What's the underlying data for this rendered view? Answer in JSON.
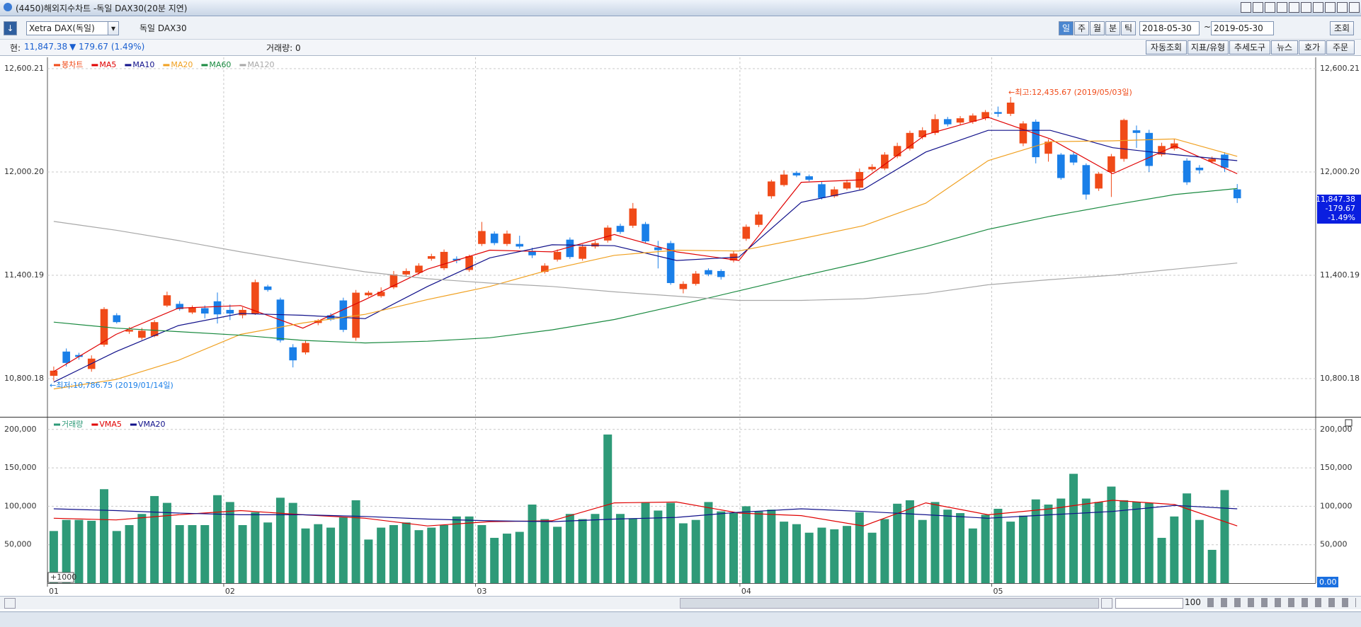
{
  "window": {
    "title": "(4450)해외지수차트 -독일 DAX30(20분 지연)"
  },
  "toolbar": {
    "symbol": "Xetra DAX(독일)",
    "name": "독일 DAX30",
    "periods": [
      "일",
      "주",
      "월",
      "분",
      "틱"
    ],
    "start": "2018-05-30",
    "sep": "~",
    "end": "2019-05-30",
    "query": "조회"
  },
  "info": {
    "price_label": "현:",
    "price": "11,847.38",
    "change": "▼ 179.67 (1.49%)",
    "volume": "거래량: 0",
    "buttons": [
      "자동조회",
      "지표/유형",
      "추세도구",
      "뉴스",
      "호가",
      "주문"
    ]
  },
  "footer": {
    "zoom": "100"
  },
  "chart_data": [
    {
      "type": "candlestick",
      "grid": true,
      "ylim": [
        10578,
        12666
      ],
      "yticks": [
        {
          "value": 12600.21,
          "label": "12,600.21"
        },
        {
          "value": 12000.2,
          "label": "12,000.20"
        },
        {
          "value": 11400.19,
          "label": "11,400.19"
        },
        {
          "value": 10800.18,
          "label": "10,800.18"
        }
      ],
      "series": [
        {
          "name": "봉차트",
          "up_color": "#f04a18",
          "down_color": "#1a7fe8",
          "open": [
            10816,
            10957,
            10937,
            10856,
            10997,
            11168,
            11073,
            11037,
            11047,
            11224,
            11234,
            11184,
            11209,
            11249,
            11199,
            11168,
            11178,
            11335,
            11259,
            10982,
            10952,
            11123,
            11168,
            11254,
            11037,
            11284,
            11279,
            11330,
            11405,
            11415,
            11496,
            11441,
            11496,
            11431,
            11582,
            11642,
            11582,
            11582,
            11541,
            11420,
            11491,
            11607,
            11496,
            11567,
            11602,
            11687,
            11688,
            11698,
            11562,
            11587,
            11320,
            11350,
            11430,
            11425,
            11486,
            11612,
            11693,
            11859,
            11924,
            11995,
            11975,
            11929,
            11859,
            11904,
            11909,
            12015,
            12020,
            12091,
            12136,
            12202,
            12227,
            12307,
            12287,
            12292,
            12312,
            12348,
            12338,
            12166,
            12292,
            12106,
            12101,
            12101,
            12040,
            11904,
            12000,
            12076,
            12242,
            12227,
            12101,
            12136,
            12066,
            12025,
            12060,
            12101,
            11899
          ],
          "high": [
            10870,
            10975,
            10950,
            10935,
            11215,
            11180,
            11100,
            11095,
            11140,
            11305,
            11250,
            11225,
            11225,
            11300,
            11230,
            11215,
            11375,
            11345,
            11270,
            11000,
            11020,
            11145,
            11180,
            11270,
            11315,
            11310,
            11330,
            11425,
            11440,
            11470,
            11525,
            11550,
            11510,
            11520,
            11710,
            11655,
            11660,
            11630,
            11560,
            11470,
            11550,
            11620,
            11580,
            11600,
            11690,
            11700,
            11820,
            11710,
            11600,
            11600,
            11365,
            11425,
            11440,
            11435,
            11540,
            11695,
            11770,
            11955,
            12010,
            12005,
            11985,
            11945,
            11915,
            11955,
            12020,
            12045,
            12115,
            12170,
            12240,
            12260,
            12335,
            12320,
            12325,
            12340,
            12360,
            12380,
            12435.67,
            12295,
            12305,
            12190,
            12110,
            12115,
            12050,
            12000,
            12105,
            12310,
            12270,
            12245,
            12170,
            12190,
            12080,
            12040,
            12090,
            12115,
            11930
          ],
          "low": [
            10786.75,
            10870,
            10910,
            10840,
            10985,
            11120,
            11060,
            11025,
            11040,
            11215,
            11195,
            11175,
            11150,
            11120,
            11140,
            11150,
            11170,
            11305,
            11010,
            10865,
            10940,
            11110,
            11135,
            11070,
            11020,
            11275,
            11270,
            11320,
            11395,
            11405,
            11485,
            11430,
            11470,
            11420,
            11570,
            11575,
            11570,
            11555,
            11500,
            11410,
            11480,
            11495,
            11485,
            11555,
            11590,
            11640,
            11675,
            11585,
            11440,
            11345,
            11295,
            11340,
            11395,
            11375,
            11475,
            11600,
            11680,
            11845,
            11915,
            11970,
            11945,
            11840,
            11850,
            11895,
            11895,
            12005,
            12010,
            12080,
            12125,
            12190,
            12215,
            12265,
            12275,
            12280,
            12300,
            12320,
            12325,
            12150,
            12050,
            12060,
            11955,
            12040,
            11840,
            11890,
            11855,
            12060,
            12140,
            12000,
            12090,
            12125,
            11925,
            11990,
            12050,
            12000,
            11820
          ],
          "close": [
            10846,
            10891,
            10926,
            10916,
            11204,
            11128,
            11083,
            11078,
            11128,
            11284,
            11204,
            11214,
            11178,
            11173,
            11178,
            11199,
            11360,
            11315,
            11022,
            10906,
            11007,
            11138,
            11143,
            11083,
            11299,
            11299,
            11304,
            11405,
            11425,
            11456,
            11511,
            11536,
            11486,
            11511,
            11657,
            11587,
            11642,
            11567,
            11516,
            11456,
            11536,
            11506,
            11567,
            11587,
            11677,
            11652,
            11788,
            11597,
            11546,
            11355,
            11350,
            11410,
            11405,
            11390,
            11526,
            11682,
            11753,
            11945,
            11985,
            11980,
            11955,
            11849,
            11899,
            11940,
            12000,
            12030,
            12101,
            12151,
            12227,
            12242,
            12307,
            12277,
            12312,
            12328,
            12348,
            12338,
            12403,
            12282,
            12086,
            12176,
            11965,
            12055,
            11869,
            11990,
            12091,
            12302,
            12227,
            12035,
            12151,
            12166,
            11940,
            12010,
            12076,
            12025,
            11847.38
          ]
        },
        {
          "name": "MA5",
          "type": "line",
          "color": "#e00000",
          "values": [
            10841,
            11057,
            11209,
            11224,
            11093,
            11259,
            11436,
            11546,
            11536,
            11637,
            11536,
            11486,
            11940,
            11955,
            12217,
            12318,
            12192,
            11990,
            12151,
            11990
          ]
        },
        {
          "name": "MA10",
          "type": "line",
          "color": "#10108a",
          "values": [
            10780,
            10957,
            11108,
            11178,
            11168,
            11148,
            11335,
            11501,
            11577,
            11572,
            11486,
            11506,
            11824,
            11899,
            12116,
            12242,
            12242,
            12141,
            12101,
            12066
          ]
        },
        {
          "name": "MA20",
          "type": "line",
          "color": "#f0a020",
          "values": [
            10740,
            10795,
            10906,
            11057,
            11123,
            11173,
            11259,
            11335,
            11436,
            11516,
            11546,
            11541,
            11612,
            11688,
            11819,
            12066,
            12176,
            12181,
            12192,
            12091
          ]
        },
        {
          "name": "MA60",
          "type": "line",
          "color": "#1a8a40",
          "values": [
            11128,
            11093,
            11073,
            11052,
            11022,
            11007,
            11017,
            11037,
            11083,
            11143,
            11224,
            11310,
            11395,
            11476,
            11567,
            11667,
            11743,
            11808,
            11869,
            11904
          ]
        },
        {
          "name": "MA120",
          "type": "line",
          "color": "#a8a8a8",
          "values": [
            11713,
            11662,
            11602,
            11536,
            11476,
            11420,
            11380,
            11355,
            11335,
            11304,
            11279,
            11254,
            11254,
            11264,
            11294,
            11345,
            11375,
            11400,
            11436,
            11471
          ]
        }
      ],
      "annotations": [
        {
          "text": "←최고:12,435.67 (2019/05/03일)",
          "color": "#f04a18"
        },
        {
          "text": "←최저:10,786.75 (2019/01/14일)",
          "color": "#1a7fe8"
        }
      ],
      "last_box": [
        "11,847.38",
        "-179.67",
        "-1.49%"
      ]
    },
    {
      "type": "bar",
      "grid": true,
      "ylim": [
        0,
        214500
      ],
      "yticks": [
        {
          "value": 200000,
          "label": "200,000"
        },
        {
          "value": 150000,
          "label": "150,000"
        },
        {
          "value": 100000,
          "label": "100,000"
        },
        {
          "value": 50000,
          "label": "50,000"
        }
      ],
      "xticks": [
        {
          "value": 0,
          "label": "01"
        },
        {
          "value": 14,
          "label": "02"
        },
        {
          "value": 34,
          "label": "03"
        },
        {
          "value": 55,
          "label": "04"
        },
        {
          "value": 75,
          "label": "05"
        }
      ],
      "series": [
        {
          "name": "거래량",
          "color": "#2e9a78",
          "values": [
            67800,
            82200,
            82200,
            81100,
            122200,
            67800,
            75500,
            90000,
            113300,
            104400,
            75500,
            75500,
            75500,
            114400,
            105500,
            75500,
            92200,
            78900,
            111100,
            104400,
            71100,
            76700,
            72200,
            85500,
            107800,
            56700,
            72200,
            75500,
            78900,
            68900,
            72200,
            75500,
            86700,
            86700,
            75500,
            58900,
            64400,
            66700,
            102200,
            83300,
            73300,
            90000,
            83300,
            90000,
            193300,
            90000,
            84400,
            104400,
            94400,
            104400,
            77800,
            82200,
            105500,
            93300,
            91100,
            100000,
            93300,
            95600,
            80000,
            76700,
            65600,
            72200,
            70000,
            74400,
            92200,
            65600,
            83300,
            103300,
            107800,
            82200,
            105500,
            95600,
            91100,
            71100,
            88900,
            96700,
            80000,
            87800,
            108900,
            102200,
            110000,
            142200,
            110000,
            105500,
            125600,
            107800,
            105500,
            104400,
            58900,
            86700,
            116700,
            82200,
            43300,
            121100,
            0
          ]
        },
        {
          "name": "VMA5",
          "type": "line",
          "color": "#e00000",
          "values": [
            84400,
            82200,
            88900,
            94400,
            88900,
            84400,
            74400,
            80000,
            81100,
            104400,
            105500,
            91100,
            87800,
            74400,
            104400,
            88900,
            96700,
            107800,
            102200,
            74400
          ]
        },
        {
          "name": "VMA20",
          "type": "line",
          "color": "#10108a",
          "values": [
            96700,
            94400,
            91100,
            88900,
            88900,
            86700,
            83300,
            81100,
            80000,
            83300,
            85500,
            92200,
            96700,
            93300,
            88900,
            84400,
            88900,
            93300,
            101100,
            96700
          ]
        }
      ],
      "scale_label": "+1000",
      "last_label": "0.00"
    }
  ]
}
